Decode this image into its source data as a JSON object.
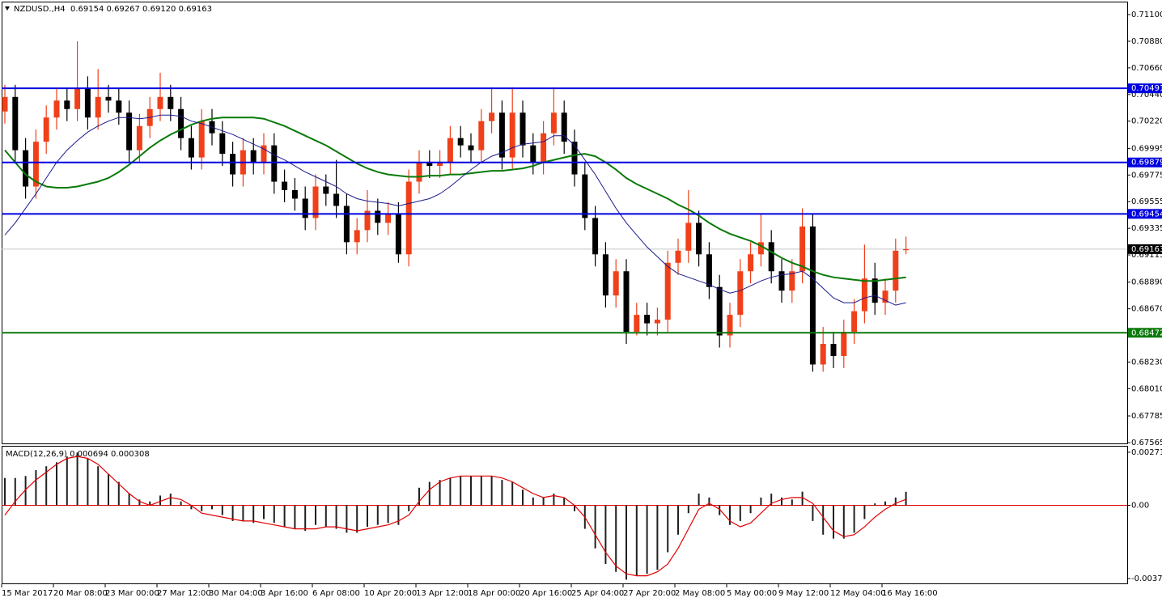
{
  "chart_data": [
    {
      "type": "candlestick",
      "title": "NZDUSD.,H4  0.69154 0.69267 0.69120 0.69163",
      "categories": [
        "15 Mar 2017",
        null,
        null,
        null,
        null,
        "20 Mar 08:00",
        null,
        null,
        null,
        null,
        "23 Mar 00:00",
        null,
        null,
        null,
        null,
        "27 Mar 12:00",
        null,
        null,
        null,
        null,
        "30 Mar 04:00",
        null,
        null,
        null,
        null,
        "3 Apr 16:00",
        null,
        null,
        null,
        null,
        "6 Apr 08:00",
        null,
        null,
        null,
        null,
        "10 Apr 20:00",
        null,
        null,
        null,
        null,
        "13 Apr 12:00",
        null,
        null,
        null,
        null,
        "18 Apr 00:00",
        null,
        null,
        null,
        null,
        "20 Apr 16:00",
        null,
        null,
        null,
        null,
        "25 Apr 04:00",
        null,
        null,
        null,
        null,
        "27 Apr 20:00",
        null,
        null,
        null,
        null,
        "2 May 08:00",
        null,
        null,
        null,
        null,
        "5 May 00:00",
        null,
        null,
        null,
        null,
        "9 May 12:00",
        null,
        null,
        null,
        null,
        "12 May 04:00",
        null,
        null,
        null,
        null,
        "16 May 16:00",
        null,
        null
      ],
      "open": [
        0.703,
        0.7042,
        0.6998,
        0.6968,
        0.7005,
        0.7025,
        0.7039,
        0.7032,
        0.7049,
        0.7025,
        0.7042,
        0.7039,
        0.7029,
        0.6998,
        0.7018,
        0.7032,
        0.7042,
        0.7032,
        0.7008,
        0.6992,
        0.7022,
        0.7012,
        0.6995,
        0.6978,
        0.6998,
        0.6988,
        0.7002,
        0.6972,
        0.6965,
        0.6958,
        0.6942,
        0.6968,
        0.6962,
        0.6952,
        0.6922,
        0.6932,
        0.6948,
        0.6938,
        0.6945,
        0.6912,
        0.6972,
        0.6988,
        0.6985,
        0.6988,
        0.7008,
        0.7002,
        0.6998,
        0.7022,
        0.7029,
        0.6992,
        0.7029,
        0.7002,
        0.6988,
        0.7012,
        0.7029,
        0.7005,
        0.6978,
        0.6942,
        0.6912,
        0.6878,
        0.6898,
        0.6848,
        0.6862,
        0.6855,
        0.6858,
        0.6905,
        0.6915,
        0.6938,
        0.6912,
        0.6885,
        0.6845,
        0.6862,
        0.6898,
        0.6912,
        0.6922,
        0.6898,
        0.6882,
        0.6898,
        0.6935,
        0.6821,
        0.6838,
        0.6828,
        0.6848,
        0.6865,
        0.6892,
        0.6872,
        0.6882,
        0.69154
      ],
      "high": [
        0.7052,
        0.7052,
        0.7008,
        0.7015,
        0.7035,
        0.7049,
        0.7049,
        0.7088,
        0.7059,
        0.7065,
        0.7052,
        0.7049,
        0.7039,
        0.7028,
        0.7042,
        0.7062,
        0.7052,
        0.7042,
        0.7018,
        0.7032,
        0.7032,
        0.7022,
        0.7005,
        0.7008,
        0.7008,
        0.7012,
        0.7012,
        0.6982,
        0.6975,
        0.6968,
        0.6978,
        0.6978,
        0.699,
        0.6962,
        0.6942,
        0.6965,
        0.6958,
        0.6955,
        0.6955,
        0.6982,
        0.6998,
        0.6998,
        0.6998,
        0.7018,
        0.7018,
        0.7012,
        0.7032,
        0.705,
        0.7039,
        0.705,
        0.7039,
        0.7012,
        0.7022,
        0.705,
        0.7039,
        0.7015,
        0.6988,
        0.6952,
        0.6922,
        0.6908,
        0.6908,
        0.6872,
        0.6872,
        0.6868,
        0.6915,
        0.6925,
        0.6965,
        0.6948,
        0.6922,
        0.6895,
        0.6872,
        0.6908,
        0.6922,
        0.6945,
        0.6932,
        0.6908,
        0.6908,
        0.695,
        0.6945,
        0.6852,
        0.6848,
        0.6858,
        0.6875,
        0.692,
        0.6905,
        0.6892,
        0.6925,
        0.69267
      ],
      "low": [
        0.702,
        0.6988,
        0.6958,
        0.6958,
        0.6995,
        0.7015,
        0.7022,
        0.7022,
        0.7015,
        0.7015,
        0.7029,
        0.7019,
        0.6988,
        0.6988,
        0.7008,
        0.7022,
        0.7022,
        0.6998,
        0.6982,
        0.6982,
        0.7002,
        0.6985,
        0.6968,
        0.6968,
        0.6978,
        0.6978,
        0.6962,
        0.6955,
        0.6948,
        0.6932,
        0.6932,
        0.6952,
        0.6942,
        0.6912,
        0.6912,
        0.6922,
        0.6928,
        0.6928,
        0.6905,
        0.6902,
        0.6962,
        0.6975,
        0.6975,
        0.6978,
        0.6992,
        0.6988,
        0.6988,
        0.7012,
        0.6982,
        0.6982,
        0.6992,
        0.6978,
        0.6978,
        0.7002,
        0.6995,
        0.6968,
        0.6932,
        0.6902,
        0.6868,
        0.6868,
        0.6838,
        0.6845,
        0.6845,
        0.6845,
        0.6848,
        0.6895,
        0.6905,
        0.6902,
        0.6875,
        0.6835,
        0.6835,
        0.6852,
        0.6888,
        0.6902,
        0.6888,
        0.6872,
        0.6872,
        0.6888,
        0.6815,
        0.6815,
        0.6818,
        0.6818,
        0.6838,
        0.6855,
        0.6862,
        0.6862,
        0.6872,
        0.6912
      ],
      "close": [
        0.7042,
        0.6998,
        0.6968,
        0.7005,
        0.7025,
        0.7039,
        0.7032,
        0.7049,
        0.7025,
        0.7042,
        0.7039,
        0.7029,
        0.6998,
        0.7018,
        0.7032,
        0.7042,
        0.7032,
        0.7008,
        0.6992,
        0.7022,
        0.7012,
        0.6995,
        0.6978,
        0.6998,
        0.6988,
        0.7002,
        0.6972,
        0.6965,
        0.6958,
        0.6942,
        0.6968,
        0.6962,
        0.6952,
        0.6922,
        0.6932,
        0.6948,
        0.6938,
        0.6945,
        0.6912,
        0.6972,
        0.6988,
        0.6985,
        0.6988,
        0.7008,
        0.7002,
        0.6998,
        0.7022,
        0.7029,
        0.6992,
        0.7029,
        0.7002,
        0.6988,
        0.7012,
        0.7029,
        0.7005,
        0.6978,
        0.6942,
        0.6912,
        0.6878,
        0.6898,
        0.6848,
        0.6862,
        0.6855,
        0.6858,
        0.6905,
        0.6915,
        0.6938,
        0.6912,
        0.6885,
        0.6845,
        0.6862,
        0.6898,
        0.6912,
        0.6922,
        0.6898,
        0.6882,
        0.6898,
        0.6935,
        0.6821,
        0.6838,
        0.6828,
        0.6848,
        0.6865,
        0.6892,
        0.6872,
        0.6882,
        0.6915,
        0.69163
      ],
      "up_color": "#f0401a",
      "down_color": "#000000",
      "series": [
        {
          "color": "#0a7a0a",
          "values": [
            0.6998,
            0.6988,
            0.6978,
            0.6972,
            0.6968,
            0.6967,
            0.6967,
            0.6968,
            0.697,
            0.6972,
            0.6975,
            0.698,
            0.6986,
            0.6993,
            0.7,
            0.7006,
            0.7011,
            0.7015,
            0.7019,
            0.7022,
            0.7024,
            0.7025,
            0.7025,
            0.7025,
            0.7025,
            0.7024,
            0.7021,
            0.7018,
            0.7014,
            0.701,
            0.7006,
            0.7002,
            0.6997,
            0.6992,
            0.6987,
            0.6983,
            0.698,
            0.6978,
            0.6977,
            0.6976,
            0.6976,
            0.6977,
            0.6977,
            0.6978,
            0.6978,
            0.6979,
            0.698,
            0.6981,
            0.6981,
            0.6982,
            0.6983,
            0.6985,
            0.6988,
            0.699,
            0.6992,
            0.6994,
            0.6995,
            0.6993,
            0.6988,
            0.6982,
            0.6975,
            0.697,
            0.6966,
            0.6962,
            0.6958,
            0.6953,
            0.6949,
            0.6944,
            0.6938,
            0.6933,
            0.6929,
            0.6926,
            0.6923,
            0.6919,
            0.6914,
            0.6909,
            0.6905,
            0.6902,
            0.6898,
            0.6895,
            0.6893,
            0.6892,
            0.6891,
            0.689,
            0.689,
            0.6891,
            0.6892,
            0.6893
          ],
          "width": 2
        },
        {
          "color": "#1a1a8c",
          "values": [
            0.6928,
            0.6938,
            0.695,
            0.6962,
            0.6975,
            0.6988,
            0.6998,
            0.7006,
            0.7013,
            0.7018,
            0.7022,
            0.7025,
            0.7025,
            0.7024,
            0.7025,
            0.7027,
            0.7027,
            0.7026,
            0.7022,
            0.702,
            0.7017,
            0.7014,
            0.7011,
            0.7007,
            0.7003,
            0.6999,
            0.6994,
            0.699,
            0.6985,
            0.698,
            0.6976,
            0.6972,
            0.6968,
            0.6962,
            0.6958,
            0.6956,
            0.6955,
            0.6954,
            0.6952,
            0.6954,
            0.6956,
            0.6958,
            0.6962,
            0.6968,
            0.6975,
            0.6982,
            0.6988,
            0.6993,
            0.6996,
            0.7,
            0.7003,
            0.7004,
            0.7005,
            0.701,
            0.701,
            0.7002,
            0.699,
            0.6978,
            0.6964,
            0.695,
            0.6938,
            0.6928,
            0.6918,
            0.691,
            0.6902,
            0.6896,
            0.6893,
            0.689,
            0.6887,
            0.6883,
            0.688,
            0.6882,
            0.6886,
            0.689,
            0.6893,
            0.6895,
            0.6896,
            0.6898,
            0.6892,
            0.6884,
            0.6876,
            0.6872,
            0.6872,
            0.6876,
            0.6878,
            0.6874,
            0.687,
            0.6872
          ],
          "width": 1
        }
      ],
      "levels": [
        {
          "value": 0.70491,
          "color": "#0000e0"
        },
        {
          "value": 0.69879,
          "color": "#0000e0"
        },
        {
          "value": 0.69454,
          "color": "#0000e0"
        },
        {
          "value": 0.68472,
          "color": "#0a7a0a"
        }
      ],
      "last_price": 0.69163,
      "ylim": [
        0.67558,
        0.71194
      ],
      "yticks": [
        {
          "value": 0.711,
          "label": "0.71100"
        },
        {
          "value": 0.7088,
          "label": "0.70880"
        },
        {
          "value": 0.7066,
          "label": "0.70660"
        },
        {
          "value": 0.7044,
          "label": "0.70440"
        },
        {
          "value": 0.7022,
          "label": "0.70220"
        },
        0.69995,
        0.69775,
        0.69555,
        0.69335,
        0.69115,
        {
          "value": 0.6889,
          "label": "0.68890"
        },
        {
          "value": 0.6867,
          "label": "0.68670"
        },
        {
          "value": 0.6823,
          "label": "0.68230"
        },
        {
          "value": 0.6801,
          "label": "0.68010"
        },
        0.67785,
        0.67565
      ]
    },
    {
      "type": "macd",
      "title": "MACD(12,26,9) 0.000694 0.000308",
      "series": [
        {
          "color": "#202020",
          "values": [
            0.0014,
            0.0014,
            0.0015,
            0.0018,
            0.002,
            0.0022,
            0.0025,
            0.0027,
            0.0024,
            0.002,
            0.0016,
            0.0012,
            0.0006,
            0.0003,
            0.0002,
            0.0005,
            0.0006,
            0.0002,
            -0.0002,
            -0.0003,
            -0.0002,
            -0.0005,
            -0.0008,
            -0.0008,
            -0.0009,
            -0.0007,
            -0.0009,
            -0.0011,
            -0.0012,
            -0.0013,
            -0.001,
            -0.0011,
            -0.0012,
            -0.0014,
            -0.0014,
            -0.0011,
            -0.001,
            -0.0009,
            -0.001,
            -0.0003,
            0.0009,
            0.0012,
            0.0013,
            0.0014,
            0.0015,
            0.0015,
            0.0015,
            0.0015,
            0.0013,
            0.0012,
            0.0008,
            0.0004,
            0.0004,
            0.0006,
            0.0004,
            -0.0003,
            -0.0012,
            -0.0022,
            -0.003,
            -0.0034,
            -0.0038,
            -0.0036,
            -0.0035,
            -0.0033,
            -0.0024,
            -0.0015,
            -0.0004,
            0.0006,
            0.0004,
            -0.0005,
            -0.001,
            -0.0008,
            -0.0004,
            0.0004,
            0.0006,
            0.0004,
            0.0003,
            0.0007,
            -0.0008,
            -0.0015,
            -0.0017,
            -0.0017,
            -0.0014,
            -0.0007,
            0.0001,
            0.0002,
            0.0004,
            0.000694
          ]
        },
        {
          "color": "#e00000",
          "values": [
            -0.0005,
            0.0002,
            0.0008,
            0.0013,
            0.0017,
            0.0021,
            0.0024,
            0.0025,
            0.0024,
            0.0021,
            0.0016,
            0.0011,
            0.0006,
            0.0002,
            0.0,
            0.0002,
            0.0004,
            0.0003,
            0.0,
            -0.0004,
            -0.0005,
            -0.0006,
            -0.0007,
            -0.0008,
            -0.0008,
            -0.0009,
            -0.001,
            -0.0011,
            -0.0012,
            -0.0012,
            -0.0012,
            -0.0011,
            -0.0011,
            -0.0012,
            -0.0013,
            -0.0012,
            -0.0011,
            -0.001,
            -0.0008,
            -0.0005,
            0.0002,
            0.0008,
            0.0012,
            0.0014,
            0.0015,
            0.0015,
            0.0015,
            0.0015,
            0.0014,
            0.0012,
            0.0009,
            0.0006,
            0.0004,
            0.0005,
            0.0004,
            0.0,
            -0.0006,
            -0.0015,
            -0.0024,
            -0.0031,
            -0.0035,
            -0.0036,
            -0.0036,
            -0.0034,
            -0.003,
            -0.0022,
            -0.0012,
            -0.0002,
            0.0001,
            -0.0002,
            -0.0008,
            -0.0011,
            -0.0009,
            -0.0004,
            0.0001,
            0.0003,
            0.0004,
            0.0004,
            0.0001,
            -0.0006,
            -0.0013,
            -0.0016,
            -0.0015,
            -0.0011,
            -0.0006,
            -0.0002,
            0.0001,
            0.000308
          ]
        }
      ],
      "zero_line_color": "#e00000",
      "ylim": [
        -0.00399,
        0.00296
      ],
      "yticks": [
        0.002715,
        {
          "value": 0,
          "label": "0.00"
        },
        -0.003742
      ]
    }
  ]
}
